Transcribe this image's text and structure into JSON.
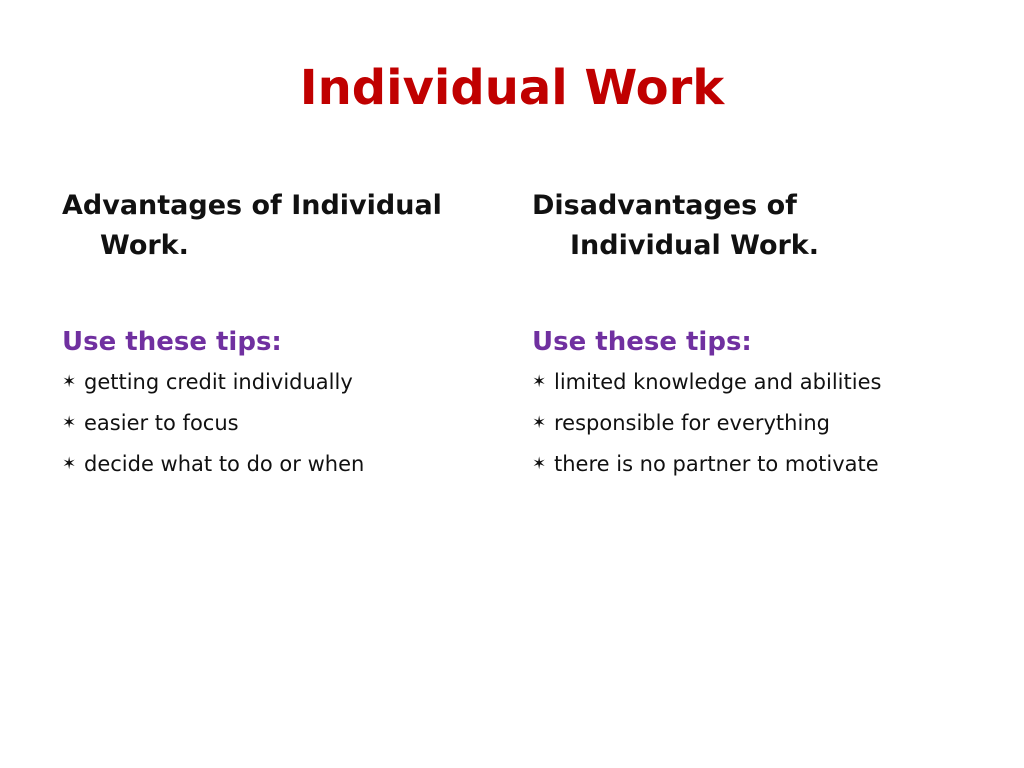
{
  "slide": {
    "title": "Individual Work",
    "colors": {
      "title": "#c00000",
      "tips_label": "#7030a0",
      "body_text": "#111111"
    },
    "left_column": {
      "heading": "Advantages of Individual Work.",
      "tips_label": "Use these tips:",
      "bullets": [
        "getting credit individually",
        "easier to focus",
        "decide what to do or when"
      ]
    },
    "right_column": {
      "heading": "Disadvantages of Individual Work.",
      "tips_label": "Use these tips:",
      "bullets": [
        "limited knowledge and abilities",
        "responsible for everything",
        "there is no partner to motivate"
      ]
    },
    "bullet_icon": "six-pointed-star-icon"
  }
}
